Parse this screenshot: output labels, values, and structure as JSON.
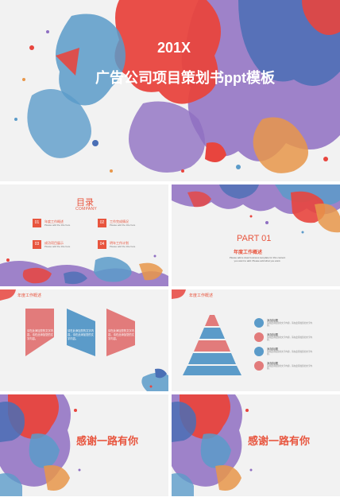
{
  "cover": {
    "year": "201X",
    "title": "广告公司项目策划书ppt模板"
  },
  "toc": {
    "title": "目录",
    "subtitle": "COMPANY",
    "items": [
      {
        "num": "01",
        "label": "年度工作概述",
        "desc": "Please add the title here"
      },
      {
        "num": "02",
        "label": "工作完成情况",
        "desc": "Please add the title here"
      },
      {
        "num": "03",
        "label": "成功项目展示",
        "desc": "Please add the title here"
      },
      {
        "num": "04",
        "label": "明年工作计划",
        "desc": "Please add the title here"
      }
    ]
  },
  "part": {
    "number": "PART 01",
    "title": "年度工作概述",
    "desc": "Please add a clear business template for this content you want to add. Please add what you want."
  },
  "process_slide": {
    "header": "年度工作概述",
    "arrows": [
      {
        "text": "请在此添加您的文字内容，请在此添加您的文字内容。",
        "color": "#e27b7b"
      },
      {
        "text": "请在此添加您的文字内容，请在此添加您的文字内容。",
        "color": "#5b9bc9"
      },
      {
        "text": "请在此添加您的文字内容，请在此添加您的文字内容。",
        "color": "#e27b7b"
      }
    ]
  },
  "pyramid_slide": {
    "header": "年度工作概述",
    "items": [
      {
        "label": "添加标题",
        "desc": "请在此添加您的文字内容，请在此添加您的文字内容。",
        "color": "#5b9bc9",
        "icon": "location-icon"
      },
      {
        "label": "添加标题",
        "desc": "请在此添加您的文字内容，请在此添加您的文字内容。",
        "color": "#e27b7b",
        "icon": "chart-icon"
      },
      {
        "label": "添加标题",
        "desc": "请在此添加您的文字内容，请在此添加您的文字内容。",
        "color": "#5b9bc9",
        "icon": "people-icon"
      },
      {
        "label": "添加标题",
        "desc": "请在此添加您的文字内容，请在此添加您的文字内容。",
        "color": "#e27b7b",
        "icon": "search-icon"
      }
    ]
  },
  "thanks": {
    "text1": "感谢一路有你",
    "text2": "感谢一路有你"
  },
  "colors": {
    "accent": "#e8553e",
    "blue": "#5b9bc9",
    "pink": "#e27b7b",
    "purple": "#8f6fc2",
    "orange": "#e8974a"
  }
}
